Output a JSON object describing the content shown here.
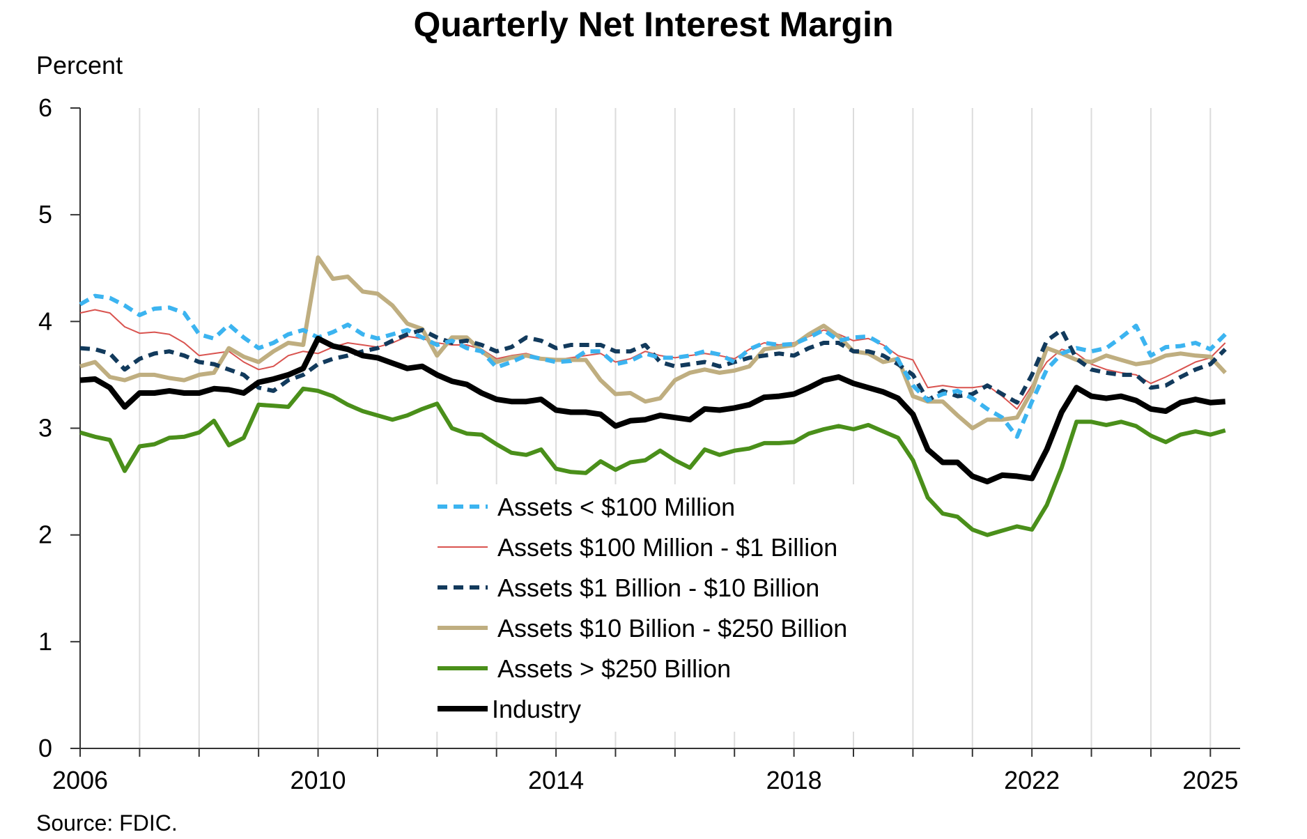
{
  "chart_data": {
    "type": "line",
    "title": "Quarterly Net Interest Margin",
    "ylabel": "Percent",
    "xlabel": "",
    "source": "Source: FDIC.",
    "ylim": [
      0,
      6
    ],
    "yticks": [
      0,
      1,
      2,
      3,
      4,
      5,
      6
    ],
    "xlim": [
      2006,
      2025.5
    ],
    "xticks": [
      {
        "value": 2006,
        "label": "2006"
      },
      {
        "value": 2010,
        "label": "2010"
      },
      {
        "value": 2014,
        "label": "2014"
      },
      {
        "value": 2018,
        "label": "2018"
      },
      {
        "value": 2022,
        "label": "2022"
      },
      {
        "value": 2025,
        "label": "2025"
      }
    ],
    "grid": "vertical, yearly",
    "legend": "lower-center",
    "x_start": "2006Q1",
    "x_end": "2025Q2",
    "frequency": "quarterly",
    "series": [
      {
        "name": "Assets < $100 Million",
        "color": "#3cb4f0",
        "style": "dashed",
        "width": 6,
        "values": [
          4.16,
          4.24,
          4.22,
          4.15,
          4.06,
          4.12,
          4.13,
          4.08,
          3.88,
          3.84,
          3.97,
          3.85,
          3.75,
          3.8,
          3.88,
          3.92,
          3.85,
          3.9,
          3.97,
          3.88,
          3.84,
          3.88,
          3.92,
          3.85,
          3.78,
          3.82,
          3.75,
          3.72,
          3.57,
          3.62,
          3.68,
          3.65,
          3.62,
          3.63,
          3.72,
          3.72,
          3.6,
          3.63,
          3.7,
          3.66,
          3.66,
          3.68,
          3.72,
          3.69,
          3.62,
          3.74,
          3.8,
          3.78,
          3.79,
          3.85,
          3.92,
          3.82,
          3.85,
          3.86,
          3.78,
          3.64,
          3.4,
          3.26,
          3.32,
          3.35,
          3.28,
          3.18,
          3.1,
          2.92,
          3.25,
          3.55,
          3.7,
          3.75,
          3.72,
          3.75,
          3.85,
          3.96,
          3.68,
          3.76,
          3.77,
          3.8,
          3.74,
          3.88
        ]
      },
      {
        "name": "Assets  $100 Million - $1 Billion",
        "color": "#d9534f",
        "style": "solid",
        "width": 2,
        "values": [
          4.08,
          4.11,
          4.08,
          3.95,
          3.89,
          3.9,
          3.88,
          3.8,
          3.68,
          3.7,
          3.72,
          3.62,
          3.55,
          3.58,
          3.68,
          3.72,
          3.7,
          3.76,
          3.8,
          3.78,
          3.76,
          3.8,
          3.86,
          3.84,
          3.8,
          3.78,
          3.78,
          3.74,
          3.65,
          3.68,
          3.7,
          3.66,
          3.64,
          3.66,
          3.68,
          3.7,
          3.62,
          3.65,
          3.72,
          3.68,
          3.66,
          3.68,
          3.7,
          3.68,
          3.65,
          3.74,
          3.8,
          3.78,
          3.8,
          3.86,
          3.92,
          3.88,
          3.82,
          3.84,
          3.78,
          3.68,
          3.64,
          3.38,
          3.4,
          3.38,
          3.38,
          3.4,
          3.3,
          3.18,
          3.4,
          3.62,
          3.74,
          3.7,
          3.6,
          3.55,
          3.52,
          3.5,
          3.42,
          3.48,
          3.55,
          3.62,
          3.66,
          3.8
        ]
      },
      {
        "name": "Assets  $1 Billion - $10 Billion",
        "color": "#123a5c",
        "style": "dashed",
        "width": 6,
        "values": [
          3.75,
          3.74,
          3.7,
          3.55,
          3.65,
          3.7,
          3.72,
          3.68,
          3.62,
          3.6,
          3.55,
          3.5,
          3.38,
          3.35,
          3.45,
          3.5,
          3.6,
          3.65,
          3.68,
          3.72,
          3.75,
          3.82,
          3.88,
          3.92,
          3.85,
          3.8,
          3.82,
          3.78,
          3.72,
          3.76,
          3.85,
          3.82,
          3.75,
          3.78,
          3.78,
          3.78,
          3.72,
          3.72,
          3.78,
          3.62,
          3.58,
          3.6,
          3.62,
          3.58,
          3.62,
          3.66,
          3.68,
          3.7,
          3.68,
          3.75,
          3.8,
          3.8,
          3.72,
          3.72,
          3.68,
          3.6,
          3.5,
          3.26,
          3.35,
          3.3,
          3.32,
          3.4,
          3.32,
          3.24,
          3.5,
          3.82,
          3.92,
          3.65,
          3.55,
          3.52,
          3.5,
          3.5,
          3.38,
          3.4,
          3.48,
          3.55,
          3.6,
          3.74
        ]
      },
      {
        "name": "Assets  $10 Billion - $250 Billion",
        "color": "#bfae80",
        "style": "solid",
        "width": 6,
        "values": [
          3.58,
          3.62,
          3.48,
          3.45,
          3.5,
          3.5,
          3.47,
          3.45,
          3.5,
          3.52,
          3.75,
          3.67,
          3.62,
          3.72,
          3.8,
          3.78,
          4.6,
          4.4,
          4.42,
          4.28,
          4.26,
          4.15,
          3.98,
          3.93,
          3.68,
          3.85,
          3.85,
          3.72,
          3.62,
          3.66,
          3.68,
          3.65,
          3.64,
          3.64,
          3.64,
          3.45,
          3.32,
          3.33,
          3.25,
          3.28,
          3.45,
          3.52,
          3.55,
          3.52,
          3.54,
          3.58,
          3.74,
          3.76,
          3.78,
          3.88,
          3.96,
          3.86,
          3.72,
          3.7,
          3.62,
          3.65,
          3.3,
          3.25,
          3.25,
          3.12,
          3.0,
          3.08,
          3.08,
          3.1,
          3.35,
          3.75,
          3.7,
          3.64,
          3.62,
          3.68,
          3.64,
          3.6,
          3.62,
          3.68,
          3.7,
          3.68,
          3.67,
          3.52
        ]
      },
      {
        "name": "Assets > $250 Billion",
        "color": "#4a8f1a",
        "style": "solid",
        "width": 6,
        "values": [
          2.96,
          2.92,
          2.89,
          2.6,
          2.83,
          2.85,
          2.91,
          2.92,
          2.96,
          3.07,
          2.84,
          2.91,
          3.22,
          3.21,
          3.2,
          3.37,
          3.35,
          3.3,
          3.22,
          3.16,
          3.12,
          3.08,
          3.12,
          3.18,
          3.23,
          3.0,
          2.95,
          2.94,
          2.85,
          2.77,
          2.75,
          2.8,
          2.62,
          2.59,
          2.58,
          2.69,
          2.61,
          2.68,
          2.7,
          2.79,
          2.7,
          2.63,
          2.8,
          2.75,
          2.79,
          2.81,
          2.86,
          2.86,
          2.87,
          2.95,
          2.99,
          3.02,
          2.99,
          3.03,
          2.97,
          2.91,
          2.7,
          2.35,
          2.2,
          2.17,
          2.05,
          2.0,
          2.04,
          2.08,
          2.05,
          2.28,
          2.63,
          3.06,
          3.06,
          3.03,
          3.06,
          3.02,
          2.93,
          2.87,
          2.94,
          2.97,
          2.94,
          2.98
        ]
      },
      {
        "name": "Industry",
        "color": "#000000",
        "style": "solid",
        "width": 8,
        "values": [
          3.45,
          3.46,
          3.38,
          3.2,
          3.33,
          3.33,
          3.35,
          3.33,
          3.33,
          3.37,
          3.36,
          3.33,
          3.43,
          3.46,
          3.5,
          3.56,
          3.84,
          3.77,
          3.74,
          3.68,
          3.66,
          3.61,
          3.56,
          3.58,
          3.5,
          3.44,
          3.41,
          3.33,
          3.27,
          3.25,
          3.25,
          3.27,
          3.17,
          3.15,
          3.15,
          3.13,
          3.02,
          3.07,
          3.08,
          3.12,
          3.1,
          3.08,
          3.18,
          3.17,
          3.19,
          3.22,
          3.29,
          3.3,
          3.32,
          3.38,
          3.45,
          3.48,
          3.42,
          3.38,
          3.34,
          3.28,
          3.13,
          2.8,
          2.68,
          2.68,
          2.55,
          2.5,
          2.56,
          2.55,
          2.53,
          2.8,
          3.15,
          3.38,
          3.3,
          3.28,
          3.3,
          3.26,
          3.18,
          3.16,
          3.24,
          3.27,
          3.24,
          3.25
        ]
      }
    ]
  }
}
